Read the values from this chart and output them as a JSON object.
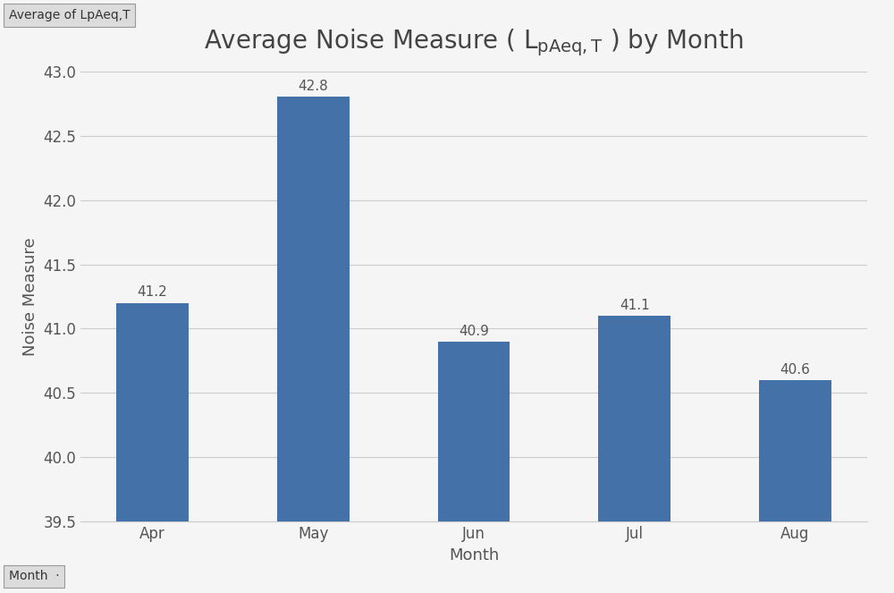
{
  "categories": [
    "Apr",
    "May",
    "Jun",
    "Jul",
    "Aug"
  ],
  "values": [
    41.2,
    42.8,
    40.9,
    41.1,
    40.6
  ],
  "bar_color": "#4472a8",
  "xlabel": "Month",
  "ylabel": "Noise Measure",
  "ylim": [
    39.5,
    43.0
  ],
  "yticks": [
    39.5,
    40.0,
    40.5,
    41.0,
    41.5,
    42.0,
    42.5,
    43.0
  ],
  "background_color": "#f5f5f5",
  "grid_color": "#cccccc",
  "label_top_text": "Average of LpAeq,T",
  "label_bottom_text": "Month",
  "bar_width": 0.45,
  "title_fontsize": 20,
  "axis_label_fontsize": 13,
  "tick_fontsize": 12,
  "value_label_fontsize": 11,
  "value_label_color": "#555555",
  "tick_color": "#555555",
  "axis_label_color": "#555555",
  "title_color": "#444444"
}
